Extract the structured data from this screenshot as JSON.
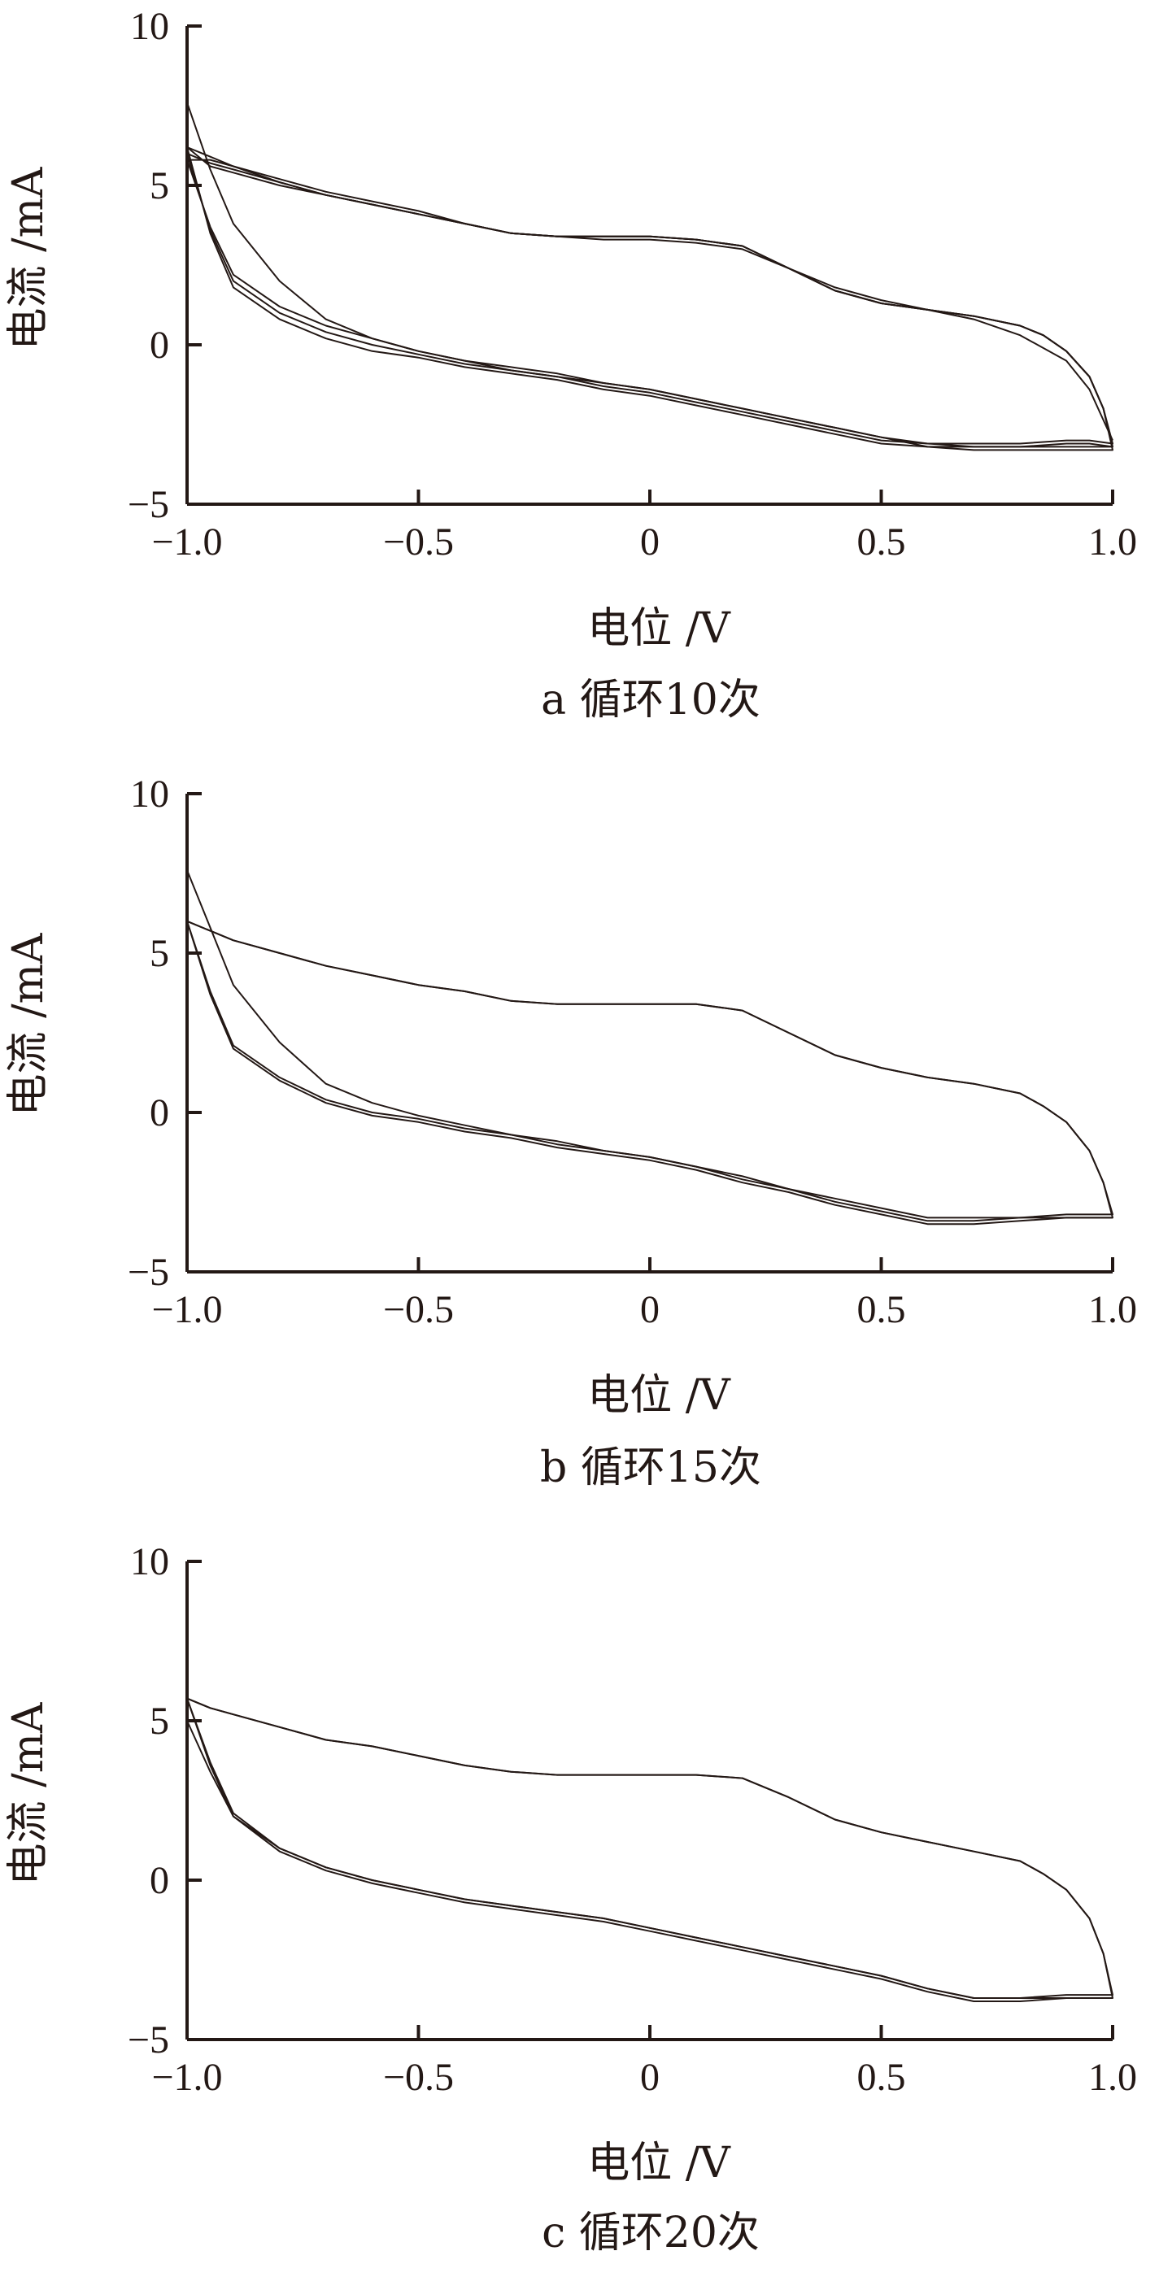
{
  "chart_data": [
    {
      "type": "line",
      "caption": "a 循环10次",
      "xlabel": "电位 /V",
      "ylabel": "电流 /mA",
      "xlim": [
        -1.0,
        1.0
      ],
      "ylim": [
        -5,
        10
      ],
      "xticks": [
        "-1.0",
        "-0.5",
        "0",
        "0.5",
        "1.0"
      ],
      "yticks": [
        "-5",
        "0",
        "5",
        "10"
      ],
      "xtick_values": [
        -1.0,
        -0.5,
        0,
        0.5,
        1.0
      ],
      "ytick_values": [
        -5,
        0,
        5,
        10
      ],
      "grid": false,
      "series": [
        {
          "x": [
            -1.0,
            -0.95,
            -0.9,
            -0.8,
            -0.7,
            -0.6,
            -0.5,
            -0.4,
            -0.3,
            -0.2,
            -0.1,
            0.0,
            0.1,
            0.2,
            0.3,
            0.4,
            0.5,
            0.6,
            0.7,
            0.8,
            0.9,
            0.95,
            1.0,
            0.98,
            0.95,
            0.9,
            0.85,
            0.8,
            0.7,
            0.6,
            0.5,
            0.4,
            0.3,
            0.2,
            0.1,
            0.0,
            -0.1,
            -0.2,
            -0.3,
            -0.4,
            -0.5,
            -0.6,
            -0.7,
            -0.8,
            -0.9,
            -0.95,
            -1.0
          ],
          "y": [
            6.2,
            3.5,
            1.8,
            0.8,
            0.2,
            -0.2,
            -0.4,
            -0.7,
            -0.9,
            -1.1,
            -1.4,
            -1.6,
            -1.9,
            -2.2,
            -2.5,
            -2.8,
            -3.1,
            -3.2,
            -3.2,
            -3.2,
            -3.1,
            -3.1,
            -3.2,
            -2.0,
            -1.0,
            -0.2,
            0.3,
            0.6,
            0.9,
            1.1,
            1.3,
            1.7,
            2.4,
            3.1,
            3.3,
            3.4,
            3.4,
            3.4,
            3.5,
            3.8,
            4.1,
            4.4,
            4.7,
            5.0,
            5.4,
            5.6,
            6.2
          ]
        },
        {
          "x": [
            -1.0,
            -0.95,
            -0.9,
            -0.8,
            -0.7,
            -0.6,
            -0.5,
            -0.4,
            -0.3,
            -0.2,
            -0.1,
            0.0,
            0.1,
            0.2,
            0.3,
            0.4,
            0.5,
            0.6,
            0.7,
            0.8,
            0.9,
            0.95,
            1.0,
            0.98,
            0.95,
            0.9,
            0.85,
            0.8,
            0.7,
            0.6,
            0.5,
            0.4,
            0.3,
            0.2,
            0.1,
            0.0,
            -0.1,
            -0.2,
            -0.3,
            -0.4,
            -0.5,
            -0.6,
            -0.7,
            -0.8,
            -0.9,
            -0.95,
            -1.0
          ],
          "y": [
            6.0,
            3.6,
            2.0,
            1.0,
            0.4,
            0.0,
            -0.3,
            -0.6,
            -0.8,
            -1.0,
            -1.3,
            -1.5,
            -1.8,
            -2.1,
            -2.4,
            -2.7,
            -3.0,
            -3.1,
            -3.1,
            -3.1,
            -3.0,
            -3.0,
            -3.1,
            -2.0,
            -1.0,
            -0.2,
            0.3,
            0.6,
            0.9,
            1.1,
            1.3,
            1.7,
            2.4,
            3.1,
            3.3,
            3.4,
            3.4,
            3.4,
            3.5,
            3.8,
            4.1,
            4.4,
            4.7,
            5.1,
            5.5,
            5.7,
            6.0
          ]
        },
        {
          "x": [
            -1.0,
            -0.95,
            -0.9,
            -0.8,
            -0.7,
            -0.6,
            -0.5,
            -0.4,
            -0.3,
            -0.2,
            -0.1,
            0.0,
            0.1,
            0.2,
            0.3,
            0.4,
            0.5,
            0.6,
            0.7,
            0.8,
            0.9,
            0.95,
            1.0,
            0.98,
            0.95,
            0.9,
            0.85,
            0.8,
            0.7,
            0.6,
            0.5,
            0.4,
            0.3,
            0.2,
            0.1,
            0.0,
            -0.1,
            -0.2,
            -0.3,
            -0.4,
            -0.5,
            -0.6,
            -0.7,
            -0.8,
            -0.9,
            -0.95,
            -1.0
          ],
          "y": [
            5.8,
            3.7,
            2.2,
            1.2,
            0.6,
            0.2,
            -0.2,
            -0.5,
            -0.7,
            -0.9,
            -1.2,
            -1.4,
            -1.7,
            -2.0,
            -2.3,
            -2.6,
            -2.9,
            -3.2,
            -3.3,
            -3.3,
            -3.3,
            -3.3,
            -3.3,
            -2.0,
            -1.0,
            -0.2,
            0.3,
            0.6,
            0.9,
            1.1,
            1.3,
            1.7,
            2.4,
            3.1,
            3.3,
            3.4,
            3.4,
            3.4,
            3.5,
            3.8,
            4.2,
            4.5,
            4.8,
            5.2,
            5.6,
            5.8,
            5.8
          ]
        },
        {
          "x": [
            -1.0,
            -0.95,
            -0.9,
            -0.8,
            -0.7,
            -0.6,
            -0.5,
            -0.4,
            -0.3,
            -0.2,
            -0.1,
            0.0,
            0.1,
            0.2,
            0.3,
            0.4,
            0.5,
            0.6,
            0.7,
            0.8,
            0.9,
            0.95,
            1.0
          ],
          "y": [
            7.6,
            5.5,
            3.8,
            2.0,
            0.8,
            0.2,
            -0.2,
            -0.5,
            -0.8,
            -1.0,
            -1.2,
            -1.4,
            -1.7,
            -2.0,
            -2.3,
            -2.6,
            -2.9,
            -3.1,
            -3.2,
            -3.2,
            -3.2,
            -3.2,
            -3.2
          ]
        },
        {
          "x": [
            -1.0,
            -0.95,
            -0.9,
            -0.8,
            -0.7,
            -0.6,
            -0.5,
            -0.4,
            -0.3,
            -0.2,
            -0.1,
            0.0,
            0.1,
            0.2,
            0.3,
            0.4,
            0.5,
            0.6,
            0.7,
            0.8,
            0.9,
            0.95,
            1.0
          ],
          "y": [
            6.2,
            5.9,
            5.6,
            5.1,
            4.7,
            4.4,
            4.1,
            3.8,
            3.5,
            3.4,
            3.3,
            3.3,
            3.2,
            3.0,
            2.4,
            1.8,
            1.4,
            1.1,
            0.8,
            0.3,
            -0.5,
            -1.4,
            -3.0
          ]
        }
      ]
    },
    {
      "type": "line",
      "caption": "b 循环15次",
      "xlabel": "电位 /V",
      "ylabel": "电流 /mA",
      "xlim": [
        -1.0,
        1.0
      ],
      "ylim": [
        -5,
        10
      ],
      "xticks": [
        "-1.0",
        "-0.5",
        "0",
        "0.5",
        "1.0"
      ],
      "yticks": [
        "-5",
        "0",
        "5",
        "10"
      ],
      "xtick_values": [
        -1.0,
        -0.5,
        0,
        0.5,
        1.0
      ],
      "ytick_values": [
        -5,
        0,
        5,
        10
      ],
      "grid": false,
      "series": [
        {
          "x": [
            -1.0,
            -0.95,
            -0.9,
            -0.8,
            -0.7,
            -0.6,
            -0.5,
            -0.4,
            -0.3,
            -0.2,
            -0.1,
            0.0,
            0.1,
            0.2,
            0.3,
            0.4,
            0.5,
            0.6,
            0.7,
            0.8,
            0.9,
            0.95,
            1.0,
            0.98,
            0.95,
            0.9,
            0.85,
            0.8,
            0.7,
            0.6,
            0.5,
            0.4,
            0.3,
            0.2,
            0.1,
            0.0,
            -0.1,
            -0.2,
            -0.3,
            -0.4,
            -0.5,
            -0.6,
            -0.7,
            -0.8,
            -0.9,
            -0.95,
            -1.0
          ],
          "y": [
            6.0,
            3.7,
            2.0,
            1.0,
            0.3,
            -0.1,
            -0.3,
            -0.6,
            -0.8,
            -1.1,
            -1.3,
            -1.5,
            -1.8,
            -2.2,
            -2.5,
            -2.9,
            -3.2,
            -3.5,
            -3.5,
            -3.4,
            -3.3,
            -3.3,
            -3.3,
            -2.2,
            -1.2,
            -0.3,
            0.2,
            0.6,
            0.9,
            1.1,
            1.4,
            1.8,
            2.5,
            3.2,
            3.4,
            3.4,
            3.4,
            3.4,
            3.5,
            3.8,
            4.0,
            4.3,
            4.6,
            5.0,
            5.4,
            5.7,
            6.0
          ]
        },
        {
          "x": [
            -1.0,
            -0.95,
            -0.9,
            -0.8,
            -0.7,
            -0.6,
            -0.5,
            -0.4,
            -0.3,
            -0.2,
            -0.1,
            0.0,
            0.1,
            0.2,
            0.3,
            0.4,
            0.5,
            0.6,
            0.7,
            0.8,
            0.9,
            0.95,
            1.0,
            0.98,
            0.95,
            0.9,
            0.85,
            0.8,
            0.7,
            0.6,
            0.5,
            0.4,
            0.3,
            0.2,
            0.1,
            0.0,
            -0.1,
            -0.2,
            -0.3,
            -0.4,
            -0.5,
            -0.6,
            -0.7,
            -0.8,
            -0.9,
            -0.95,
            -1.0
          ],
          "y": [
            6.0,
            3.8,
            2.1,
            1.1,
            0.4,
            0.0,
            -0.2,
            -0.5,
            -0.7,
            -1.0,
            -1.2,
            -1.4,
            -1.7,
            -2.1,
            -2.4,
            -2.8,
            -3.1,
            -3.4,
            -3.4,
            -3.3,
            -3.2,
            -3.2,
            -3.2,
            -2.2,
            -1.2,
            -0.3,
            0.2,
            0.6,
            0.9,
            1.1,
            1.4,
            1.8,
            2.5,
            3.2,
            3.4,
            3.4,
            3.4,
            3.4,
            3.5,
            3.8,
            4.0,
            4.3,
            4.6,
            5.0,
            5.4,
            5.7,
            6.0
          ]
        },
        {
          "x": [
            -1.0,
            -0.95,
            -0.9,
            -0.8,
            -0.7,
            -0.6,
            -0.5,
            -0.4,
            -0.3,
            -0.2,
            -0.1,
            0.0,
            0.1,
            0.2,
            0.3,
            0.4,
            0.5,
            0.6,
            0.7,
            0.8,
            0.9,
            0.95,
            1.0
          ],
          "y": [
            7.6,
            5.8,
            4.0,
            2.2,
            0.9,
            0.3,
            -0.1,
            -0.4,
            -0.7,
            -0.9,
            -1.2,
            -1.4,
            -1.7,
            -2.0,
            -2.4,
            -2.7,
            -3.0,
            -3.3,
            -3.3,
            -3.3,
            -3.3,
            -3.3,
            -3.3
          ]
        }
      ]
    },
    {
      "type": "line",
      "caption": "c 循环20次",
      "xlabel": "电位 /V",
      "ylabel": "电流 /mA",
      "xlim": [
        -1.0,
        1.0
      ],
      "ylim": [
        -5,
        10
      ],
      "xticks": [
        "-1.0",
        "-0.5",
        "0",
        "0.5",
        "1.0"
      ],
      "yticks": [
        "-5",
        "0",
        "5",
        "10"
      ],
      "xtick_values": [
        -1.0,
        -0.5,
        0,
        0.5,
        1.0
      ],
      "ytick_values": [
        -5,
        0,
        5,
        10
      ],
      "grid": false,
      "series": [
        {
          "x": [
            -1.0,
            -0.95,
            -0.9,
            -0.8,
            -0.7,
            -0.6,
            -0.5,
            -0.4,
            -0.3,
            -0.2,
            -0.1,
            0.0,
            0.1,
            0.2,
            0.3,
            0.4,
            0.5,
            0.6,
            0.7,
            0.8,
            0.9,
            0.95,
            1.0,
            0.98,
            0.95,
            0.9,
            0.85,
            0.8,
            0.7,
            0.6,
            0.5,
            0.4,
            0.3,
            0.2,
            0.1,
            0.0,
            -0.1,
            -0.2,
            -0.3,
            -0.4,
            -0.5,
            -0.6,
            -0.7,
            -0.8,
            -0.9,
            -0.95,
            -1.0
          ],
          "y": [
            5.7,
            3.6,
            2.0,
            0.9,
            0.3,
            -0.1,
            -0.4,
            -0.7,
            -0.9,
            -1.1,
            -1.3,
            -1.6,
            -1.9,
            -2.2,
            -2.5,
            -2.8,
            -3.1,
            -3.5,
            -3.8,
            -3.8,
            -3.7,
            -3.7,
            -3.7,
            -2.3,
            -1.2,
            -0.3,
            0.2,
            0.6,
            0.9,
            1.2,
            1.5,
            1.9,
            2.6,
            3.2,
            3.3,
            3.3,
            3.3,
            3.3,
            3.4,
            3.6,
            3.9,
            4.2,
            4.4,
            4.8,
            5.2,
            5.4,
            5.7
          ]
        },
        {
          "x": [
            -1.0,
            -0.95,
            -0.9,
            -0.8,
            -0.7,
            -0.6,
            -0.5,
            -0.4,
            -0.3,
            -0.2,
            -0.1,
            0.0,
            0.1,
            0.2,
            0.3,
            0.4,
            0.5,
            0.6,
            0.7,
            0.8,
            0.9,
            0.95,
            1.0,
            0.98,
            0.95,
            0.9,
            0.85,
            0.8,
            0.7,
            0.6,
            0.5,
            0.4,
            0.3,
            0.2,
            0.1,
            0.0,
            -0.1,
            -0.2,
            -0.3,
            -0.4,
            -0.5,
            -0.6,
            -0.7,
            -0.8,
            -0.9,
            -0.95,
            -1.0
          ],
          "y": [
            5.7,
            3.7,
            2.1,
            1.0,
            0.4,
            0.0,
            -0.3,
            -0.6,
            -0.8,
            -1.0,
            -1.2,
            -1.5,
            -1.8,
            -2.1,
            -2.4,
            -2.7,
            -3.0,
            -3.4,
            -3.7,
            -3.7,
            -3.6,
            -3.6,
            -3.6,
            -2.3,
            -1.2,
            -0.3,
            0.2,
            0.6,
            0.9,
            1.2,
            1.5,
            1.9,
            2.6,
            3.2,
            3.3,
            3.3,
            3.3,
            3.3,
            3.4,
            3.6,
            3.9,
            4.2,
            4.4,
            4.8,
            5.2,
            5.4,
            5.7
          ]
        },
        {
          "x": [
            -1.0,
            -0.95,
            -0.9,
            -0.8,
            -0.7,
            -0.6,
            -0.5,
            -0.4,
            -0.3,
            -0.2,
            -0.1,
            0.0,
            0.1,
            0.2,
            0.3,
            0.4,
            0.5,
            0.6,
            0.7,
            0.8,
            0.9,
            0.95,
            1.0
          ],
          "y": [
            5.0,
            3.4,
            2.0,
            1.0,
            0.4,
            0.0,
            -0.3,
            -0.6,
            -0.8,
            -1.0,
            -1.2,
            -1.5,
            -1.8,
            -2.1,
            -2.4,
            -2.7,
            -3.0,
            -3.4,
            -3.7,
            -3.7,
            -3.7,
            -3.7,
            -3.7
          ]
        }
      ]
    }
  ]
}
